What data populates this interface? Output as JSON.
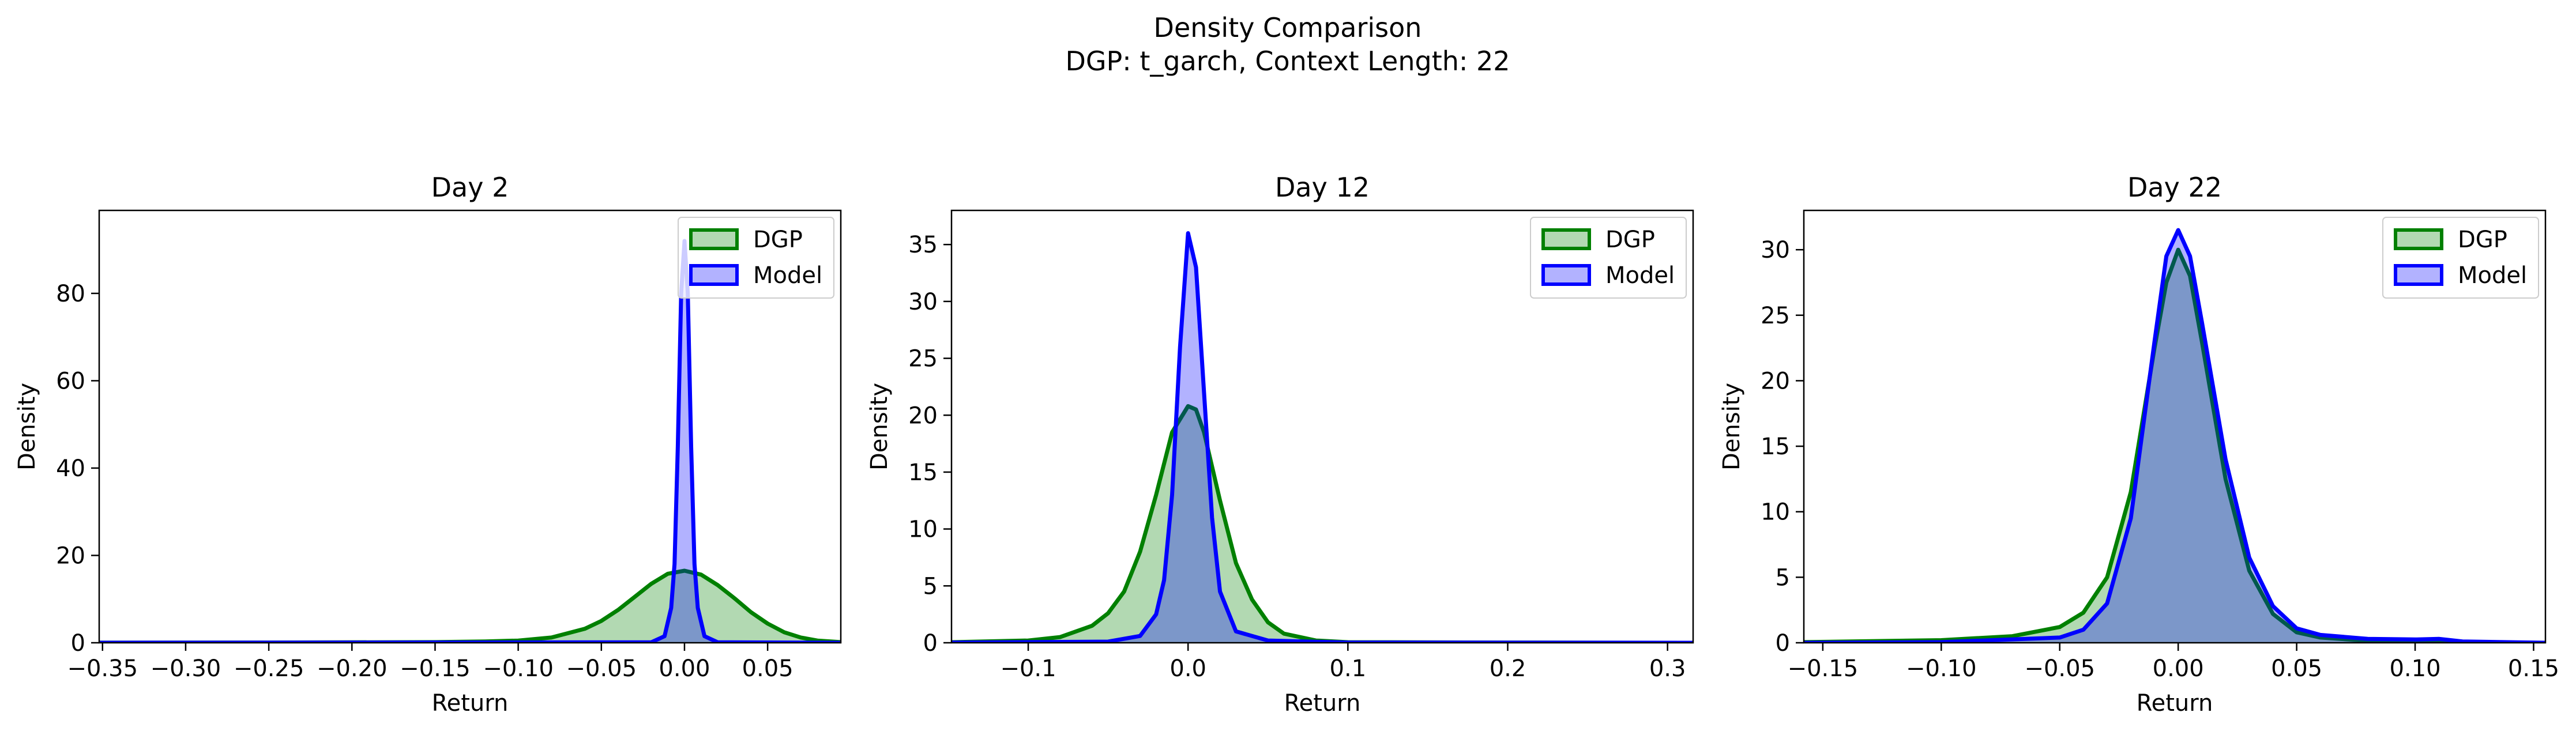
{
  "figure": {
    "title_line1": "Density Comparison",
    "title_line2": "DGP: t_garch, Context Length: 22"
  },
  "colors": {
    "dgp_line": "#008000",
    "dgp_fill": "#008000",
    "model_line": "#0000ff",
    "model_fill": "#0000ff"
  },
  "chart_data": [
    {
      "type": "area",
      "title": "Day 2",
      "xlabel": "Return",
      "ylabel": "Density",
      "xlim": [
        -0.352,
        0.094
      ],
      "ylim": [
        0,
        99
      ],
      "xticks": [
        -0.35,
        -0.3,
        -0.25,
        -0.2,
        -0.15,
        -0.1,
        -0.05,
        0.0,
        0.05
      ],
      "xtick_labels": [
        "−0.35",
        "−0.30",
        "−0.25",
        "−0.20",
        "−0.15",
        "−0.10",
        "−0.05",
        "0.00",
        "0.05"
      ],
      "yticks": [
        0,
        20,
        40,
        60,
        80
      ],
      "ytick_labels": [
        "0",
        "20",
        "40",
        "60",
        "80"
      ],
      "legend": "top-right",
      "series": [
        {
          "name": "DGP",
          "x": [
            -0.352,
            -0.25,
            -0.15,
            -0.12,
            -0.1,
            -0.08,
            -0.06,
            -0.05,
            -0.04,
            -0.03,
            -0.02,
            -0.01,
            0.0,
            0.01,
            0.02,
            0.03,
            0.04,
            0.05,
            0.06,
            0.07,
            0.08,
            0.094
          ],
          "y": [
            0.02,
            0.05,
            0.15,
            0.3,
            0.5,
            1.2,
            3.2,
            5.0,
            7.5,
            10.5,
            13.5,
            15.8,
            16.5,
            15.6,
            13.2,
            10.2,
            7.0,
            4.4,
            2.4,
            1.2,
            0.5,
            0.15
          ]
        },
        {
          "name": "Model",
          "x": [
            -0.352,
            -0.02,
            -0.012,
            -0.008,
            -0.006,
            -0.004,
            -0.002,
            0.0,
            0.002,
            0.004,
            0.006,
            0.008,
            0.012,
            0.02,
            0.094
          ],
          "y": [
            0,
            0.1,
            1.5,
            8,
            18,
            45,
            80,
            92,
            80,
            45,
            18,
            8,
            1.5,
            0.1,
            0
          ]
        }
      ]
    },
    {
      "type": "area",
      "title": "Day 12",
      "xlabel": "Return",
      "ylabel": "Density",
      "xlim": [
        -0.148,
        0.316
      ],
      "ylim": [
        0,
        38
      ],
      "xticks": [
        -0.1,
        0.0,
        0.1,
        0.2,
        0.3
      ],
      "xtick_labels": [
        "−0.1",
        "0.0",
        "0.1",
        "0.2",
        "0.3"
      ],
      "yticks": [
        0,
        5,
        10,
        15,
        20,
        25,
        30,
        35
      ],
      "ytick_labels": [
        "0",
        "5",
        "10",
        "15",
        "20",
        "25",
        "30",
        "35"
      ],
      "legend": "top-right",
      "series": [
        {
          "name": "DGP",
          "x": [
            -0.148,
            -0.1,
            -0.08,
            -0.06,
            -0.05,
            -0.04,
            -0.03,
            -0.02,
            -0.01,
            0.0,
            0.005,
            0.01,
            0.02,
            0.03,
            0.04,
            0.05,
            0.06,
            0.08,
            0.1,
            0.2,
            0.316
          ],
          "y": [
            0.05,
            0.2,
            0.5,
            1.5,
            2.6,
            4.5,
            8.0,
            13.0,
            18.5,
            20.8,
            20.5,
            18.5,
            12.5,
            7.0,
            3.8,
            1.8,
            0.8,
            0.2,
            0.05,
            0.02,
            0.0
          ]
        },
        {
          "name": "Model",
          "x": [
            -0.148,
            -0.05,
            -0.03,
            -0.02,
            -0.015,
            -0.01,
            -0.005,
            0.0,
            0.005,
            0.01,
            0.015,
            0.02,
            0.03,
            0.05,
            0.1,
            0.316
          ],
          "y": [
            0.02,
            0.1,
            0.6,
            2.5,
            5.5,
            13.0,
            26.0,
            36.0,
            33.0,
            22.0,
            11.0,
            4.5,
            1.0,
            0.2,
            0.02,
            0.0
          ]
        }
      ]
    },
    {
      "type": "area",
      "title": "Day 22",
      "xlabel": "Return",
      "ylabel": "Density",
      "xlim": [
        -0.158,
        0.155
      ],
      "ylim": [
        0,
        33
      ],
      "xticks": [
        -0.15,
        -0.1,
        -0.05,
        0.0,
        0.05,
        0.1,
        0.15
      ],
      "xtick_labels": [
        "−0.15",
        "−0.10",
        "−0.05",
        "0.00",
        "0.05",
        "0.10",
        "0.15"
      ],
      "yticks": [
        0,
        5,
        10,
        15,
        20,
        25,
        30
      ],
      "ytick_labels": [
        "0",
        "5",
        "10",
        "15",
        "20",
        "25",
        "30"
      ],
      "legend": "top-right",
      "series": [
        {
          "name": "DGP",
          "x": [
            -0.158,
            -0.1,
            -0.07,
            -0.05,
            -0.04,
            -0.03,
            -0.02,
            -0.01,
            -0.005,
            0.0,
            0.005,
            0.01,
            0.02,
            0.03,
            0.04,
            0.05,
            0.06,
            0.08,
            0.1,
            0.155
          ],
          "y": [
            0.05,
            0.2,
            0.5,
            1.2,
            2.3,
            5.0,
            11.5,
            22.5,
            27.5,
            30.0,
            28.0,
            23.0,
            12.5,
            5.5,
            2.2,
            0.8,
            0.4,
            0.15,
            0.05,
            0.0
          ]
        },
        {
          "name": "Model",
          "x": [
            -0.158,
            -0.1,
            -0.05,
            -0.04,
            -0.03,
            -0.02,
            -0.01,
            -0.005,
            0.0,
            0.005,
            0.01,
            0.02,
            0.03,
            0.04,
            0.05,
            0.06,
            0.08,
            0.1,
            0.11,
            0.12,
            0.155
          ],
          "y": [
            0.0,
            0.05,
            0.4,
            1.0,
            3.0,
            9.5,
            23.0,
            29.5,
            31.5,
            29.5,
            24.5,
            14.0,
            6.5,
            2.8,
            1.1,
            0.6,
            0.3,
            0.25,
            0.3,
            0.1,
            0.0
          ]
        }
      ]
    }
  ]
}
